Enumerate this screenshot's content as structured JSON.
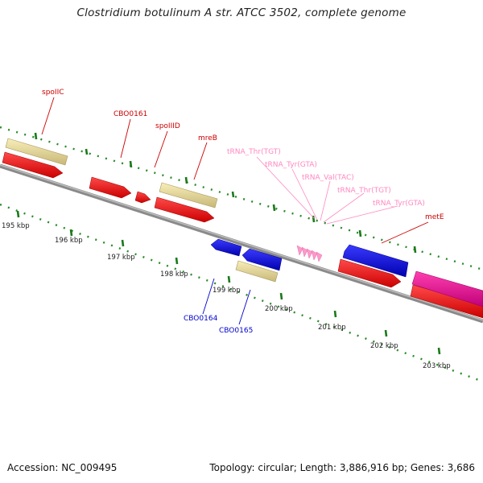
{
  "title": "Clostridium botulinum A str. ATCC 3502, complete genome",
  "accession": "Accession: NC_009495",
  "summary": "Topology: circular; Length: 3,886,916 bp; Genes: 3,686",
  "scale_labels": [
    "195 kbp",
    "196 kbp",
    "197 kbp",
    "198 kbp",
    "199 kbp",
    "200 kbp",
    "201 kbp",
    "202 kbp",
    "203 kbp"
  ],
  "gene_labels": {
    "spoIIC": "spoIIC",
    "CBO0161": "CBO0161",
    "spoIIID": "spoIIID",
    "mreB": "mreB",
    "trna1": "tRNA_Thr(TGT)",
    "trna2": "tRNA_Tyr(GTA)",
    "trna3": "tRNA_Val(TAC)",
    "trna4": "tRNA_Thr(TGT)",
    "trna5": "tRNA_Tyr(GTA)",
    "metE": "metE",
    "CBO0164": "CBO0164",
    "CBO0165": "CBO0165"
  },
  "colors": {
    "cds_forward": "#ff1a1a",
    "cds_reverse": "#1a1aff",
    "orf": "#f0e4a0",
    "trna": "#ff99cc",
    "magenta_feature": "#ff1aa0",
    "backbone": "#777777",
    "tick_green": "#1a7a1a",
    "label_red": "#cc0000",
    "label_blue": "#0000cc",
    "label_pink": "#ff88c0"
  }
}
